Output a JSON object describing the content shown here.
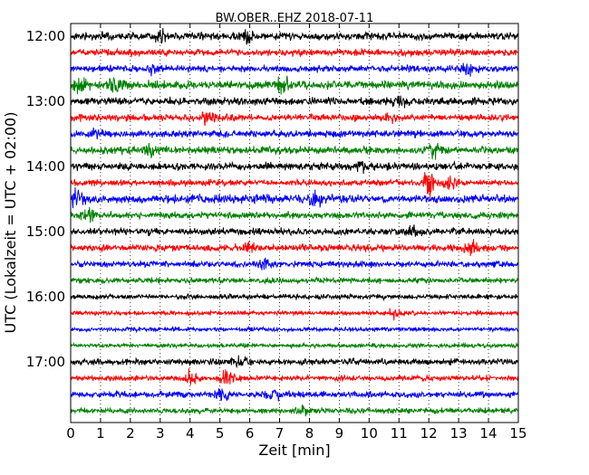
{
  "chart_data": {
    "type": "line",
    "title": "BW.OBER..EHZ 2018-07-11",
    "xlabel": "Zeit  [min]",
    "ylabel": "UTC (Lokalzeit = UTC + 02:00)",
    "xlim": [
      0,
      15
    ],
    "x_ticks": [
      "0",
      "1",
      "2",
      "3",
      "4",
      "5",
      "6",
      "7",
      "8",
      "9",
      "10",
      "11",
      "12",
      "13",
      "14",
      "15"
    ],
    "y_ticks": [
      {
        "label": "12:00",
        "trace_index": 0
      },
      {
        "label": "13:00",
        "trace_index": 4
      },
      {
        "label": "14:00",
        "trace_index": 8
      },
      {
        "label": "15:00",
        "trace_index": 12
      },
      {
        "label": "16:00",
        "trace_index": 16
      },
      {
        "label": "17:00",
        "trace_index": 20
      }
    ],
    "trace_interval_minutes": 15,
    "grid": "vertical dotted at each minute",
    "colors": [
      "#000000",
      "#ff0000",
      "#0000ff",
      "#008000"
    ],
    "series": [
      {
        "start": "12:00",
        "color": "#000000",
        "amplitude": 0.55,
        "events": [
          {
            "x": 5.9,
            "a": 0.9
          },
          {
            "x": 3.0,
            "a": 0.7
          }
        ]
      },
      {
        "start": "12:15",
        "color": "#ff0000",
        "amplitude": 0.5,
        "events": []
      },
      {
        "start": "12:30",
        "color": "#0000ff",
        "amplitude": 0.5,
        "events": [
          {
            "x": 13.3,
            "a": 0.8
          },
          {
            "x": 2.7,
            "a": 0.6
          }
        ]
      },
      {
        "start": "12:45",
        "color": "#008000",
        "amplitude": 0.6,
        "events": [
          {
            "x": 1.5,
            "a": 1.0
          },
          {
            "x": 7.1,
            "a": 1.1
          },
          {
            "x": 0.3,
            "a": 0.9
          }
        ]
      },
      {
        "start": "13:00",
        "color": "#000000",
        "amplitude": 0.55,
        "events": [
          {
            "x": 11.0,
            "a": 0.8
          }
        ]
      },
      {
        "start": "13:15",
        "color": "#ff0000",
        "amplitude": 0.5,
        "events": [
          {
            "x": 4.6,
            "a": 0.8
          },
          {
            "x": 10.7,
            "a": 0.7
          }
        ]
      },
      {
        "start": "13:30",
        "color": "#0000ff",
        "amplitude": 0.5,
        "events": [
          {
            "x": 0.9,
            "a": 0.5
          }
        ]
      },
      {
        "start": "13:45",
        "color": "#008000",
        "amplitude": 0.55,
        "events": [
          {
            "x": 12.2,
            "a": 0.9
          },
          {
            "x": 2.7,
            "a": 0.6
          }
        ]
      },
      {
        "start": "14:00",
        "color": "#000000",
        "amplitude": 0.55,
        "events": [
          {
            "x": 9.8,
            "a": 0.7
          }
        ]
      },
      {
        "start": "14:15",
        "color": "#ff0000",
        "amplitude": 0.45,
        "events": [
          {
            "x": 12.0,
            "a": 1.6
          },
          {
            "x": 12.7,
            "a": 1.0
          }
        ]
      },
      {
        "start": "14:30",
        "color": "#0000ff",
        "amplitude": 0.6,
        "events": [
          {
            "x": 0.25,
            "a": 1.4
          },
          {
            "x": 8.2,
            "a": 0.8
          }
        ]
      },
      {
        "start": "14:45",
        "color": "#008000",
        "amplitude": 0.5,
        "events": [
          {
            "x": 0.6,
            "a": 0.8
          }
        ]
      },
      {
        "start": "15:00",
        "color": "#000000",
        "amplitude": 0.5,
        "events": [
          {
            "x": 11.5,
            "a": 0.6
          }
        ]
      },
      {
        "start": "15:15",
        "color": "#ff0000",
        "amplitude": 0.5,
        "events": [
          {
            "x": 6.0,
            "a": 0.9
          },
          {
            "x": 13.4,
            "a": 0.9
          }
        ]
      },
      {
        "start": "15:30",
        "color": "#0000ff",
        "amplitude": 0.45,
        "events": [
          {
            "x": 6.5,
            "a": 0.7
          }
        ]
      },
      {
        "start": "15:45",
        "color": "#008000",
        "amplitude": 0.4,
        "events": []
      },
      {
        "start": "16:00",
        "color": "#000000",
        "amplitude": 0.35,
        "events": []
      },
      {
        "start": "16:15",
        "color": "#ff0000",
        "amplitude": 0.3,
        "events": [
          {
            "x": 10.85,
            "a": 0.8
          }
        ]
      },
      {
        "start": "16:30",
        "color": "#0000ff",
        "amplitude": 0.3,
        "events": []
      },
      {
        "start": "16:45",
        "color": "#008000",
        "amplitude": 0.3,
        "events": []
      },
      {
        "start": "17:00",
        "color": "#000000",
        "amplitude": 0.45,
        "events": [
          {
            "x": 5.7,
            "a": 0.7
          }
        ]
      },
      {
        "start": "17:15",
        "color": "#ff0000",
        "amplitude": 0.4,
        "events": [
          {
            "x": 5.2,
            "a": 0.9
          },
          {
            "x": 4.0,
            "a": 0.8
          }
        ]
      },
      {
        "start": "17:30",
        "color": "#0000ff",
        "amplitude": 0.45,
        "events": [
          {
            "x": 5.0,
            "a": 0.8
          },
          {
            "x": 6.8,
            "a": 0.8
          }
        ]
      },
      {
        "start": "17:45",
        "color": "#008000",
        "amplitude": 0.4,
        "events": [
          {
            "x": 7.9,
            "a": 0.8
          }
        ]
      }
    ]
  }
}
